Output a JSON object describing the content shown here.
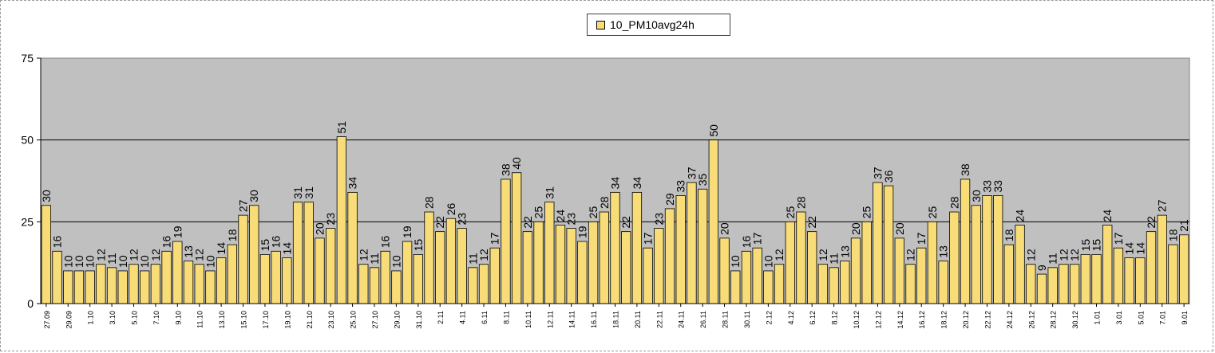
{
  "chart_data": {
    "type": "bar",
    "legend_position": "top-center",
    "grid": true,
    "bar_color": "#F7DC77",
    "plot_background": "#C0C0C0",
    "series": [
      {
        "name": "10_PM10avg24h",
        "values": [
          30,
          16,
          10,
          10,
          10,
          12,
          11,
          10,
          12,
          10,
          12,
          16,
          19,
          13,
          12,
          10,
          14,
          18,
          27,
          30,
          15,
          16,
          14,
          31,
          31,
          20,
          23,
          51,
          34,
          12,
          11,
          16,
          10,
          19,
          15,
          28,
          22,
          26,
          23,
          11,
          12,
          17,
          38,
          40,
          22,
          25,
          31,
          24,
          23,
          19,
          25,
          28,
          34,
          22,
          34,
          17,
          23,
          29,
          33,
          37,
          35,
          50,
          20,
          10,
          16,
          17,
          10,
          12,
          25,
          28,
          22,
          12,
          11,
          13,
          20,
          25,
          37,
          36,
          20,
          12,
          17,
          25,
          13,
          28,
          38,
          30,
          33,
          33,
          18,
          24,
          12,
          9,
          11,
          12,
          12,
          15,
          15,
          24,
          17,
          14,
          14,
          22,
          27,
          18,
          21
        ]
      }
    ],
    "x_tick_labels": [
      "27.09",
      "29.09",
      "1.10",
      "3.10",
      "5.10",
      "7.10",
      "9.10",
      "11.10",
      "13.10",
      "15.10",
      "17.10",
      "19.10",
      "21.10",
      "23.10",
      "25.10",
      "27.10",
      "29.10",
      "31.10",
      "2.11",
      "4.11",
      "6.11",
      "8.11",
      "10.11",
      "12.11",
      "14.11",
      "16.11",
      "18.11",
      "20.11",
      "22.11",
      "24.11",
      "26.11",
      "28.11",
      "30.11",
      "2.12",
      "4.12",
      "6.12",
      "8.12",
      "10.12",
      "12.12",
      "14.12",
      "16.12",
      "18.12",
      "20.12",
      "22.12",
      "24.12",
      "26.12",
      "28.12",
      "30.12",
      "1.01",
      "3.01",
      "5.01",
      "7.01",
      "9.01"
    ],
    "y_ticks": [
      0,
      25,
      50,
      75
    ],
    "ylim": [
      0,
      75
    ],
    "xlabel": "",
    "ylabel": "",
    "title": ""
  }
}
